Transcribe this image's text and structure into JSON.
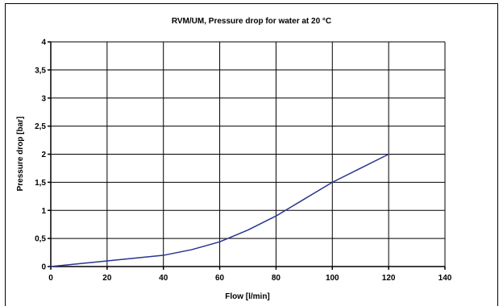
{
  "chart_data": {
    "type": "line",
    "title": "RVM/UM, Pressure drop for water at 20 °C",
    "xlabel": "Flow [l/min]",
    "ylabel": "Pressure drop [bar]",
    "xlim": [
      0,
      140
    ],
    "ylim": [
      0,
      4
    ],
    "x_ticks": [
      "0",
      "20",
      "40",
      "60",
      "80",
      "100",
      "120",
      "140"
    ],
    "y_ticks": [
      "0",
      "0,5",
      "1",
      "1,5",
      "2",
      "2,5",
      "3",
      "3,5",
      "4"
    ],
    "grid": true,
    "series": [
      {
        "color": "#27358f",
        "x": [
          0,
          20,
          40,
          50,
          60,
          70,
          80,
          90,
          100,
          110,
          120
        ],
        "y": [
          0,
          0.1,
          0.2,
          0.3,
          0.44,
          0.65,
          0.9,
          1.2,
          1.5,
          1.75,
          2.0
        ]
      }
    ]
  }
}
